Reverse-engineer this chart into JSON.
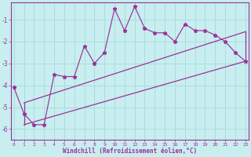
{
  "xlabel": "Windchill (Refroidissement éolien,°C)",
  "background_color": "#c8eef0",
  "grid_color": "#aadddd",
  "line_color": "#993399",
  "x_data": [
    0,
    1,
    2,
    3,
    4,
    5,
    6,
    7,
    8,
    9,
    10,
    11,
    12,
    13,
    14,
    15,
    16,
    17,
    18,
    19,
    20,
    21,
    22,
    23
  ],
  "y_data": [
    -4.1,
    -5.3,
    -5.8,
    -5.8,
    -3.5,
    -3.6,
    -3.6,
    -2.2,
    -3.0,
    -2.5,
    -0.5,
    -1.5,
    -0.4,
    -1.4,
    -1.6,
    -1.6,
    -2.0,
    -1.2,
    -1.5,
    -1.5,
    -1.7,
    -2.0,
    -2.5,
    -2.9
  ],
  "xlim": [
    -0.3,
    23.3
  ],
  "ylim": [
    -6.5,
    -0.2
  ],
  "yticks": [
    -6,
    -5,
    -4,
    -3,
    -2,
    -1
  ],
  "xticks": [
    0,
    1,
    2,
    3,
    4,
    5,
    6,
    7,
    8,
    9,
    10,
    11,
    12,
    13,
    14,
    15,
    16,
    17,
    18,
    19,
    20,
    21,
    22,
    23
  ],
  "band_x1": 1,
  "band_x2": 23,
  "lower_y1": -5.8,
  "lower_y2": -2.9,
  "upper_y1": -4.8,
  "upper_y2": -1.55
}
